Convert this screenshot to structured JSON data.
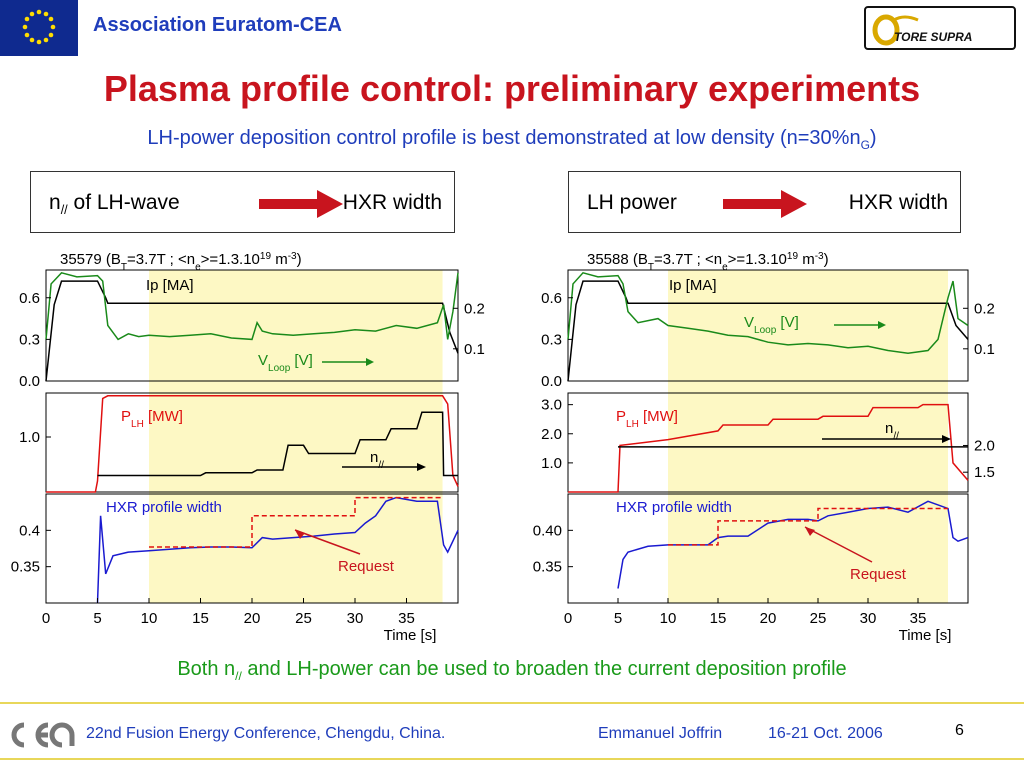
{
  "header": {
    "organization": "Association Euratom-CEA",
    "logo_right_text": "TORE SUPRA",
    "logo_left": "eu-flag"
  },
  "title": "Plasma profile control: preliminary experiments",
  "subtitle": {
    "text": "LH-power deposition control profile is best demonstrated at low density (n=30%n",
    "sub": "G",
    "end": ")"
  },
  "boxes": [
    {
      "left_pre": "n",
      "left_sub": "//",
      "left_post": " of LH-wave",
      "right": "HXR width"
    },
    {
      "left_pre": "LH power",
      "left_sub": "",
      "left_post": "",
      "right": "HXR width"
    }
  ],
  "chart_data": [
    {
      "type": "line",
      "title": "35579 (BT=3.7T ; <ne>=1.3.10^19 m^-3)",
      "title_parts": {
        "a": "35579 (B",
        "b": "T",
        "c": "=3.7T ; <n",
        "d": "e",
        "e": ">=1.3.10",
        "f": "19",
        "g": " m",
        "h": "-3",
        "i": ")"
      },
      "xlabel": "Time [s]",
      "xlim": [
        0,
        40
      ],
      "xticks": [
        "0",
        "5",
        "10",
        "15",
        "20",
        "25",
        "30",
        "35"
      ],
      "highlight_x": [
        10,
        38.5
      ],
      "highlight_color": "#fdf8c4",
      "panels": [
        {
          "ylim": [
            0,
            0.8
          ],
          "left_ticks": [
            "0.6",
            "0.3",
            "0.0"
          ],
          "left_tick_values": [
            0.6,
            0.3,
            0.0
          ],
          "right_ticks": [
            "0.2",
            "0.1"
          ],
          "labels": {
            "ip": "Ip [MA]",
            "vloop_pre": "V",
            "vloop_sub": "Loop",
            "vloop_post": " [V]"
          },
          "series": [
            {
              "name": "Ip [MA]",
              "color": "#000000",
              "x": [
                0,
                0.8,
                1.5,
                4,
                5,
                5.8,
                6,
                38.5,
                39.2,
                40
              ],
              "y": [
                0,
                0.55,
                0.72,
                0.72,
                0.72,
                0.6,
                0.56,
                0.56,
                0.35,
                0.2
              ]
            },
            {
              "name": "VLoop [V]",
              "color": "#1a8a1a",
              "x": [
                0,
                0.5,
                1.5,
                3,
                5,
                5.5,
                6,
                7,
                8,
                9,
                10,
                12,
                14,
                16,
                18,
                20,
                20.5,
                21,
                22,
                24,
                26,
                28,
                30,
                32,
                34,
                36,
                38,
                38.6,
                39,
                39.5,
                40
              ],
              "y": [
                0.3,
                0.7,
                0.78,
                0.75,
                0.76,
                0.72,
                0.4,
                0.3,
                0.34,
                0.32,
                0.33,
                0.32,
                0.33,
                0.34,
                0.31,
                0.3,
                0.42,
                0.36,
                0.34,
                0.33,
                0.34,
                0.35,
                0.37,
                0.36,
                0.4,
                0.38,
                0.42,
                0.55,
                0.3,
                0.5,
                0.78
              ]
            }
          ]
        },
        {
          "ylim": [
            0,
            1.8
          ],
          "left_ticks": [
            "1.0"
          ],
          "left_tick_values": [
            1.0
          ],
          "right_ticks": [],
          "labels": {
            "plh_pre": "P",
            "plh_sub": "LH",
            "plh_post": " [MW]",
            "npar_pre": "n",
            "npar_sub": "//"
          },
          "series": [
            {
              "name": "PLH [MW]",
              "color": "#e01010",
              "x": [
                0,
                4.8,
                5,
                5.5,
                6,
                38.5,
                39,
                39.5,
                40
              ],
              "y": [
                0,
                0,
                0.2,
                1.7,
                1.75,
                1.75,
                1.6,
                0.3,
                0.1
              ]
            },
            {
              "name": "n//",
              "color": "#000000",
              "x": [
                5,
                15,
                15.5,
                20,
                20.5,
                23,
                23.5,
                25,
                25.5,
                30,
                30.5,
                33,
                33.5,
                36,
                36.5,
                38.5,
                38.6,
                40
              ],
              "y": [
                0.3,
                0.3,
                0.35,
                0.35,
                0.4,
                0.4,
                0.85,
                0.85,
                0.7,
                0.7,
                0.95,
                0.95,
                1.15,
                1.15,
                1.45,
                1.45,
                0.3,
                0.3
              ]
            }
          ]
        },
        {
          "ylim": [
            0.3,
            0.45
          ],
          "left_ticks": [
            "0.4",
            "0.35"
          ],
          "left_tick_values": [
            0.4,
            0.35
          ],
          "right_ticks": [],
          "labels": {
            "hxr": "HXR profile width",
            "request": "Request"
          },
          "series": [
            {
              "name": "HXR profile width",
              "color": "#1a1ad0",
              "x": [
                5,
                5.3,
                5.8,
                6.5,
                8,
                10,
                12,
                14,
                16,
                18,
                20,
                21,
                22,
                24,
                26,
                28,
                30,
                31,
                32,
                33,
                34,
                36,
                38,
                38.6,
                39,
                40
              ],
              "y": [
                0.3,
                0.42,
                0.34,
                0.365,
                0.37,
                0.372,
                0.374,
                0.376,
                0.377,
                0.377,
                0.376,
                0.39,
                0.388,
                0.39,
                0.392,
                0.395,
                0.397,
                0.41,
                0.42,
                0.44,
                0.445,
                0.44,
                0.44,
                0.38,
                0.37,
                0.4
              ]
            },
            {
              "name": "Request",
              "color": "#e01010",
              "x": [
                10,
                20,
                20,
                30,
                30,
                38.5
              ],
              "y": [
                0.377,
                0.377,
                0.42,
                0.42,
                0.445,
                0.445
              ]
            }
          ]
        }
      ]
    },
    {
      "type": "line",
      "title": "35588 (BT=3.7T ; <ne>=1.3.10^19 m^-3)",
      "title_parts": {
        "a": "35588 (B",
        "b": "T",
        "c": "=3.7T ; <n",
        "d": "e",
        "e": ">=1.3.10",
        "f": "19",
        "g": " m",
        "h": "-3",
        "i": ")"
      },
      "xlabel": "Time [s]",
      "xlim": [
        0,
        40
      ],
      "xticks": [
        "0",
        "5",
        "10",
        "15",
        "20",
        "25",
        "30",
        "35"
      ],
      "highlight_x": [
        10,
        38
      ],
      "highlight_color": "#fdf8c4",
      "panels": [
        {
          "ylim": [
            0,
            0.8
          ],
          "left_ticks": [
            "0.6",
            "0.3",
            "0.0"
          ],
          "left_tick_values": [
            0.6,
            0.3,
            0.0
          ],
          "right_ticks": [
            "0.2",
            "0.1"
          ],
          "labels": {
            "ip": "Ip [MA]",
            "vloop_pre": "V",
            "vloop_sub": "Loop",
            "vloop_post": " [V]"
          },
          "series": [
            {
              "name": "Ip [MA]",
              "color": "#000000",
              "x": [
                0,
                0.8,
                1.5,
                4,
                5,
                5.8,
                6,
                38,
                38.8,
                40
              ],
              "y": [
                0,
                0.55,
                0.72,
                0.72,
                0.72,
                0.6,
                0.56,
                0.56,
                0.4,
                0.3
              ]
            },
            {
              "name": "VLoop [V]",
              "color": "#1a8a1a",
              "x": [
                0,
                0.5,
                1.5,
                3,
                5,
                5.5,
                6,
                7,
                9,
                10,
                12,
                14,
                16,
                18,
                20,
                22,
                24,
                26,
                28,
                30,
                32,
                34,
                36,
                37,
                38,
                38.5,
                39,
                40
              ],
              "y": [
                0.3,
                0.7,
                0.78,
                0.75,
                0.76,
                0.7,
                0.5,
                0.42,
                0.45,
                0.4,
                0.38,
                0.36,
                0.33,
                0.32,
                0.28,
                0.26,
                0.27,
                0.26,
                0.24,
                0.25,
                0.22,
                0.2,
                0.22,
                0.3,
                0.6,
                0.72,
                0.45,
                0.4
              ]
            }
          ]
        },
        {
          "ylim": [
            0,
            3.4
          ],
          "left_ticks": [
            "3.0",
            "2.0",
            "1.0"
          ],
          "left_tick_values": [
            3.0,
            2.0,
            1.0
          ],
          "right_ticks": [
            "2.0",
            "1.5"
          ],
          "labels": {
            "plh_pre": "P",
            "plh_sub": "LH",
            "plh_post": " [MW]",
            "npar_pre": "n",
            "npar_sub": "//"
          },
          "series": [
            {
              "name": "PLH [MW]",
              "color": "#e01010",
              "x": [
                0,
                5,
                5.2,
                10,
                15,
                15.5,
                20,
                20.5,
                25,
                25.5,
                30,
                30.5,
                35,
                35.5,
                38,
                38.5,
                40
              ],
              "y": [
                0,
                0,
                1.6,
                1.8,
                2.1,
                2.3,
                2.3,
                2.5,
                2.5,
                2.6,
                2.6,
                2.9,
                2.9,
                3.0,
                3.0,
                1.0,
                0.4
              ]
            },
            {
              "name": "n//",
              "color": "#000000",
              "x": [
                5,
                38,
                38.5,
                40
              ],
              "y": [
                1.55,
                1.55,
                1.55,
                1.55
              ]
            }
          ]
        },
        {
          "ylim": [
            0.3,
            0.45
          ],
          "left_ticks": [
            "0.40",
            "0.35"
          ],
          "left_tick_values": [
            0.4,
            0.35
          ],
          "right_ticks": [],
          "labels": {
            "hxr": "HXR profile width",
            "request": "Request"
          },
          "series": [
            {
              "name": "HXR profile width",
              "color": "#1a1ad0",
              "x": [
                5,
                5.5,
                6,
                8,
                10,
                12,
                14,
                15,
                16,
                18,
                20,
                22,
                24,
                25,
                26,
                28,
                30,
                32,
                34,
                36,
                38,
                38.5,
                39,
                40
              ],
              "y": [
                0.32,
                0.36,
                0.37,
                0.378,
                0.38,
                0.38,
                0.38,
                0.39,
                0.392,
                0.392,
                0.41,
                0.415,
                0.415,
                0.413,
                0.42,
                0.425,
                0.43,
                0.432,
                0.425,
                0.44,
                0.43,
                0.39,
                0.385,
                0.39
              ]
            },
            {
              "name": "Request",
              "color": "#e01010",
              "x": [
                10,
                15,
                15,
                25,
                25,
                38
              ],
              "y": [
                0.38,
                0.38,
                0.413,
                0.413,
                0.43,
                0.43
              ]
            }
          ]
        }
      ]
    }
  ],
  "conclusion": {
    "a": "Both n",
    "sub": "//",
    "b": " and LH-power can be used to broaden the current deposition profile"
  },
  "footer": {
    "conference": "22nd Fusion Energy Conference, Chengdu, China.",
    "author": "Emmanuel Joffrin",
    "dates": "16-21 Oct. 2006",
    "page": "6"
  }
}
